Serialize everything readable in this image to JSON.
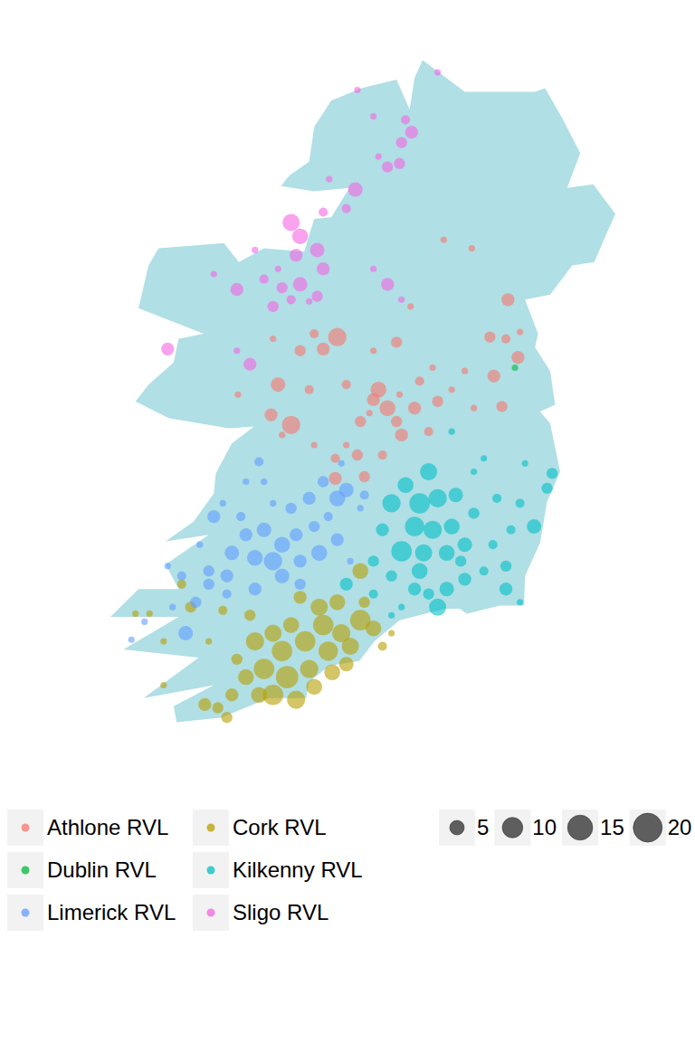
{
  "chart_data": {
    "type": "bubble_map",
    "tick_labels": false,
    "legend": "bottom",
    "size_ticks": [
      5,
      10,
      15,
      20
    ],
    "series": [
      {
        "name": "Athlone RVL",
        "color": "#F8766D",
        "x": [
          -6.52,
          -6.7,
          -6.54,
          -6.4,
          -6.42,
          -6.66,
          -6.86,
          -6.58,
          -7.08,
          -7.27,
          -7.22,
          -7.45,
          -7.63,
          -7.58,
          -7.81,
          -7.86,
          -7.72,
          -7.9,
          -7.99,
          -8.13,
          -8.36,
          -8.22,
          -8.45,
          -8.59,
          -8.86,
          -8.81,
          -8.88,
          -8.68,
          -8.77,
          -9.21,
          -8.5,
          -8.24,
          -8.13,
          -8.02,
          -7.77,
          -7.95,
          -8.24,
          -7.63,
          -7.86,
          -7.31,
          -6.95,
          -6.88,
          -7.16,
          -7.49,
          -7.4,
          -8.45,
          -7.6
        ],
        "values": [
          54.0,
          53.78,
          53.77,
          53.81,
          53.66,
          53.55,
          53.36,
          53.37,
          53.47,
          53.6,
          53.4,
          53.36,
          53.28,
          53.2,
          53.47,
          53.41,
          53.36,
          53.33,
          53.28,
          53.5,
          53.71,
          53.78,
          53.8,
          53.7,
          53.77,
          53.5,
          53.32,
          53.26,
          53.2,
          53.44,
          53.47,
          53.06,
          53.14,
          53.08,
          53.08,
          52.95,
          52.94,
          53.75,
          53.7,
          53.22,
          53.58,
          54.3,
          54.35,
          53.96,
          53.52,
          53.14,
          53.44
        ],
        "size": [
          4,
          3,
          2,
          1,
          4,
          4,
          1,
          3,
          1,
          1,
          3,
          4,
          3,
          4,
          6,
          4,
          6,
          1,
          3,
          2,
          4,
          8,
          2,
          3,
          1,
          5,
          4,
          8,
          1,
          1,
          2,
          2,
          1,
          3,
          2,
          3,
          4,
          3,
          1,
          2,
          1,
          1,
          1,
          1,
          2,
          1,
          1
        ]
      },
      {
        "name": "Cork RVL",
        "color": "#B79F00",
        "x": [
          -8.59,
          -8.4,
          -8.22,
          -8.36,
          -8.18,
          -7.99,
          -7.86,
          -8.68,
          -8.86,
          -9.04,
          -8.77,
          -8.54,
          -8.31,
          -8.09,
          -8.95,
          -8.72,
          -8.5,
          -8.27,
          -8.86,
          -8.63,
          -8.45,
          -9.13,
          -9.27,
          -9.41,
          -9.54,
          -9.32,
          -9.68,
          -9.77,
          -9.95,
          -7.77,
          -7.68,
          -9.09,
          -9.36,
          -9.0,
          -8.13,
          -9.22,
          -9.5,
          -7.95,
          -7.99,
          -10.23,
          -10.09,
          -9.95
        ],
        "values": [
          52.22,
          52.16,
          52.19,
          52.05,
          52.0,
          52.08,
          52.03,
          52.05,
          52.0,
          51.95,
          51.89,
          51.95,
          51.89,
          51.92,
          51.78,
          51.73,
          51.78,
          51.76,
          51.62,
          51.59,
          51.67,
          51.73,
          51.62,
          51.54,
          51.56,
          51.48,
          52.16,
          52.3,
          51.95,
          51.92,
          52.0,
          52.11,
          52.14,
          51.62,
          51.81,
          51.84,
          51.95,
          52.19,
          52.38,
          52.12,
          52.12,
          51.68
        ],
        "size": [
          4,
          7,
          6,
          10,
          8,
          10,
          6,
          6,
          7,
          8,
          10,
          10,
          9,
          7,
          10,
          12,
          8,
          6,
          10,
          8,
          6,
          6,
          4,
          3,
          4,
          3,
          3,
          2,
          1,
          2,
          1,
          3,
          2,
          6,
          5,
          3,
          1,
          3,
          6,
          1,
          1,
          1
        ]
      },
      {
        "name": "Dublin RVL",
        "color": "#00BA38",
        "x": [
          -6.45
        ],
        "values": [
          53.6
        ],
        "size": [
          1
        ]
      },
      {
        "name": "Kilkenny RVL",
        "color": "#00BFC4",
        "x": [
          -7.31,
          -7.54,
          -7.68,
          -7.4,
          -7.22,
          -7.04,
          -7.45,
          -7.27,
          -7.08,
          -7.58,
          -7.36,
          -7.13,
          -6.95,
          -6.86,
          -6.63,
          -6.4,
          -6.08,
          -6.13,
          -6.26,
          -6.49,
          -6.67,
          -6.54,
          -6.76,
          -6.95,
          -7.13,
          -7.31,
          -7.22,
          -7.45,
          -7.68,
          -7.86,
          -7.77,
          -8.13,
          -7.86,
          -7.68,
          -6.4,
          -6.54,
          -6.86,
          -7.08,
          -6.76,
          -6.35,
          -6.99,
          -7.58,
          -7.4
        ],
        "values": [
          52.98,
          52.9,
          52.79,
          52.79,
          52.82,
          52.84,
          52.65,
          52.63,
          52.65,
          52.5,
          52.49,
          52.49,
          52.54,
          52.73,
          52.82,
          52.79,
          52.97,
          52.88,
          52.65,
          52.63,
          52.54,
          52.41,
          52.38,
          52.33,
          52.27,
          52.24,
          52.16,
          52.27,
          52.35,
          52.44,
          52.63,
          52.3,
          52.24,
          52.11,
          52.19,
          52.27,
          52.98,
          53.22,
          53.06,
          53.03,
          52.44,
          52.16,
          52.38
        ],
        "size": [
          7,
          6,
          8,
          10,
          8,
          5,
          9,
          8,
          6,
          10,
          7,
          6,
          5,
          3,
          2,
          2,
          3,
          3,
          5,
          2,
          2,
          3,
          2,
          4,
          5,
          3,
          7,
          4,
          3,
          3,
          4,
          4,
          2,
          1,
          1,
          4,
          1,
          1,
          1,
          1,
          3,
          1,
          6
        ]
      },
      {
        "name": "Limerick RVL",
        "color": "#619CFF",
        "x": [
          -8.36,
          -8.13,
          -8.22,
          -8.5,
          -8.68,
          -8.86,
          -9.0,
          -9.13,
          -9.36,
          -9.45,
          -9.59,
          -9.5,
          -9.27,
          -9.13,
          -8.95,
          -8.77,
          -8.86,
          -9.04,
          -9.32,
          -9.5,
          -9.77,
          -9.91,
          -8.59,
          -8.4,
          -8.22,
          -8.09,
          -8.77,
          -8.59,
          -9.04,
          -9.32,
          -9.73,
          -9.63,
          -7.95,
          -7.99,
          -8.31,
          -9.18,
          -8.95,
          -8.63,
          -8.45,
          -10.27,
          -10.14,
          -9.86,
          -8.18
        ],
        "values": [
          52.92,
          52.87,
          52.82,
          52.82,
          52.76,
          52.79,
          53.04,
          52.92,
          52.79,
          52.71,
          52.54,
          52.38,
          52.49,
          52.6,
          52.63,
          52.54,
          52.44,
          52.46,
          52.35,
          52.3,
          52.35,
          52.41,
          52.44,
          52.49,
          52.57,
          52.44,
          52.35,
          52.3,
          52.27,
          52.24,
          52.0,
          52.19,
          52.84,
          52.76,
          52.71,
          52.71,
          52.92,
          52.6,
          52.65,
          51.96,
          52.07,
          52.16,
          53.03
        ],
        "size": [
          3,
          5,
          6,
          4,
          3,
          1,
          2,
          1,
          1,
          4,
          1,
          3,
          5,
          4,
          5,
          6,
          8,
          6,
          4,
          3,
          2,
          1,
          4,
          6,
          4,
          1,
          5,
          3,
          4,
          2,
          5,
          3,
          2,
          1,
          2,
          2,
          1,
          4,
          3,
          1,
          1,
          1,
          1
        ]
      },
      {
        "name": "Sligo RVL",
        "color": "#F564E3",
        "x": [
          -7.22,
          -7.54,
          -7.48,
          -7.58,
          -7.72,
          -7.6,
          -7.81,
          -8.02,
          -7.86,
          -8.04,
          -8.36,
          -8.68,
          -8.59,
          -8.42,
          -8.63,
          -8.81,
          -8.77,
          -8.59,
          -8.36,
          -8.5,
          -8.86,
          -9.22,
          -9.45,
          -9.04,
          -9.91,
          -9.09,
          -7.72,
          -7.58,
          -7.86,
          -9.22,
          -8.13,
          -8.3,
          -8.42,
          -8.95,
          -8.68
        ],
        "values": [
          55.31,
          55.04,
          54.97,
          54.91,
          54.77,
          54.79,
          54.83,
          55.21,
          55.06,
          54.64,
          54.51,
          54.45,
          54.37,
          54.29,
          54.26,
          54.18,
          54.07,
          54.09,
          54.18,
          53.99,
          53.96,
          54.06,
          54.15,
          54.29,
          53.71,
          53.62,
          54.09,
          54.0,
          54.18,
          53.7,
          54.53,
          54.7,
          54.02,
          54.12,
          54.0
        ],
        "size": [
          1,
          2,
          4,
          3,
          3,
          3,
          1,
          1,
          1,
          5,
          2,
          7,
          6,
          5,
          4,
          1,
          3,
          5,
          4,
          1,
          3,
          4,
          1,
          1,
          4,
          4,
          4,
          1,
          1,
          1,
          2,
          1,
          3,
          2,
          2
        ]
      }
    ]
  }
}
